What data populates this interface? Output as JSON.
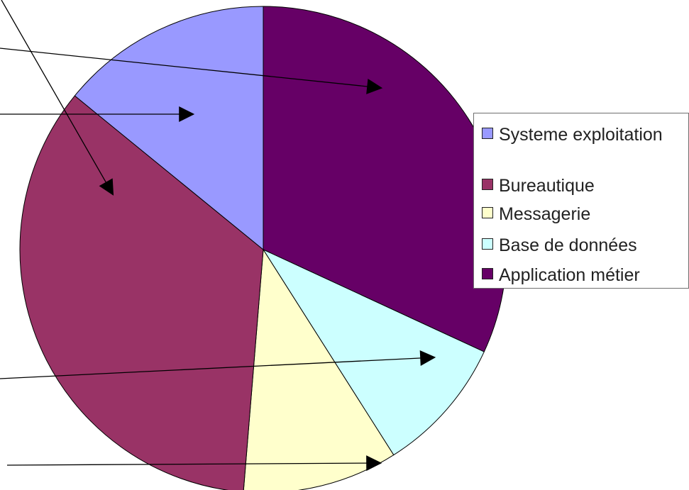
{
  "chart_data": {
    "type": "pie",
    "slices": [
      {
        "label": "Application métier",
        "value": 31.9,
        "color": "#660066"
      },
      {
        "label": "Base de données",
        "value": 9.1,
        "color": "#ccffff"
      },
      {
        "label": "Messagerie",
        "value": 10.3,
        "color": "#ffffcc"
      },
      {
        "label": "Bureautique",
        "value": 34.6,
        "color": "#993366"
      },
      {
        "label": "Systeme exploitation",
        "value": 14.1,
        "color": "#9999ff"
      }
    ],
    "start_angle_deg": 0,
    "direction": "clockwise",
    "legend_position": "right",
    "legend": [
      {
        "label": "Systeme exploitation",
        "color": "#9999ff"
      },
      {
        "label": "Bureautique",
        "color": "#993366"
      },
      {
        "label": "Messagerie",
        "color": "#ffffcc"
      },
      {
        "label": "Base de données",
        "color": "#ccffff"
      },
      {
        "label": "Application métier",
        "color": "#660066"
      }
    ]
  }
}
